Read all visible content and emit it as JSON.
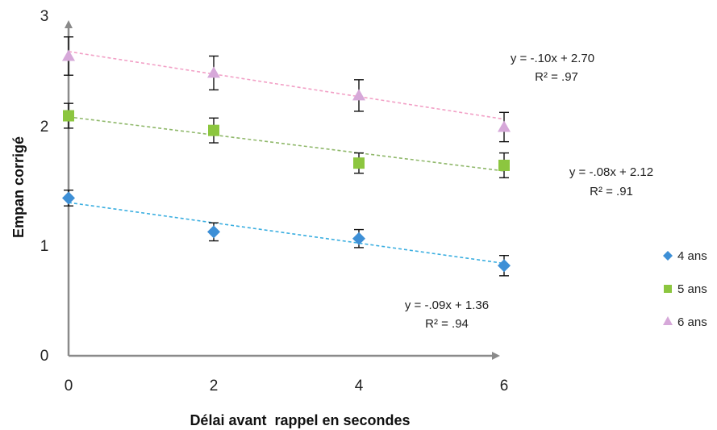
{
  "chart_data": {
    "type": "scatter",
    "xlabel": "Délai avant  rappel en secondes",
    "ylabel": "Empan corrigé",
    "xlim": [
      0,
      6
    ],
    "ylim": [
      0,
      3
    ],
    "x_ticks": [
      "0",
      "2",
      "4",
      "6"
    ],
    "y_ticks": [
      "0",
      "1",
      "2",
      "3"
    ],
    "grid": false,
    "legend_position": "right",
    "x": [
      0,
      2,
      4,
      6
    ],
    "series": [
      {
        "name": "4 ans",
        "marker": "diamond",
        "color": "#3d8fd6",
        "trend_color": "#3aaee0",
        "values": [
          1.4,
          1.1,
          1.04,
          0.8
        ],
        "error": [
          0.07,
          0.08,
          0.08,
          0.09
        ],
        "trend": {
          "slope": -0.09,
          "intercept": 1.36
        },
        "equation": "y = -.09x + 1.36",
        "r2": "R² = .94"
      },
      {
        "name": "5 ans",
        "marker": "square",
        "color": "#8cc63f",
        "trend_color": "#8fb86a",
        "values": [
          2.13,
          2.0,
          1.71,
          1.69
        ],
        "error": [
          0.11,
          0.11,
          0.09,
          0.11
        ],
        "trend": {
          "slope": -0.08,
          "intercept": 2.12
        },
        "equation": "y = -.08x + 2.12",
        "r2": "R² = .91"
      },
      {
        "name": "6 ans",
        "marker": "triangle",
        "color": "#d6a8d9",
        "trend_color": "#f2a0c6",
        "values": [
          2.66,
          2.51,
          2.31,
          2.03
        ],
        "error": [
          0.17,
          0.15,
          0.14,
          0.13
        ],
        "trend": {
          "slope": -0.1,
          "intercept": 2.7
        },
        "equation": "y = -.10x + 2.70",
        "r2": "R² = .97"
      }
    ]
  }
}
